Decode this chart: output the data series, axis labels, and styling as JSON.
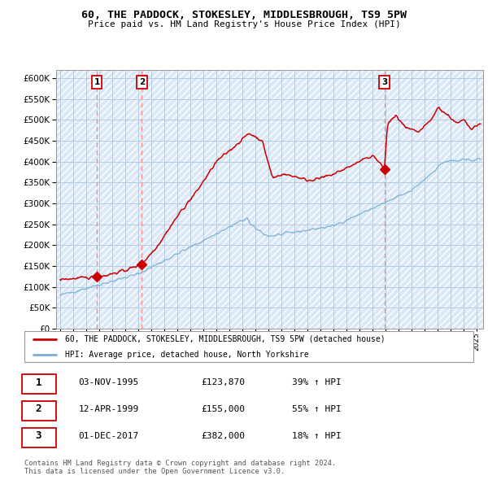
{
  "title": "60, THE PADDOCK, STOKESLEY, MIDDLESBROUGH, TS9 5PW",
  "subtitle": "Price paid vs. HM Land Registry's House Price Index (HPI)",
  "ytick_vals": [
    0,
    50000,
    100000,
    150000,
    200000,
    250000,
    300000,
    350000,
    400000,
    450000,
    500000,
    550000,
    600000
  ],
  "ylim": [
    0,
    620000
  ],
  "xlim_start": 1992.7,
  "xlim_end": 2025.5,
  "sale_points": [
    {
      "num": "1",
      "year": 1995.83,
      "price": 123870
    },
    {
      "num": "2",
      "year": 1999.28,
      "price": 155000
    },
    {
      "num": "3",
      "year": 2017.92,
      "price": 382000
    }
  ],
  "red_line_color": "#cc0000",
  "blue_line_color": "#7ab0d4",
  "marker_color": "#cc0000",
  "vline_color": "#ff8888",
  "bg_color": "#dce8f5",
  "grid_color": "#adc8e0",
  "legend1_label": "60, THE PADDOCK, STOKESLEY, MIDDLESBROUGH, TS9 5PW (detached house)",
  "legend2_label": "HPI: Average price, detached house, North Yorkshire",
  "footnote1": "Contains HM Land Registry data © Crown copyright and database right 2024.",
  "footnote2": "This data is licensed under the Open Government Licence v3.0.",
  "table_rows": [
    {
      "num": "1",
      "date": "03-NOV-1995",
      "price": "£123,870",
      "hpi": "39% ↑ HPI"
    },
    {
      "num": "2",
      "date": "12-APR-1999",
      "price": "£155,000",
      "hpi": "55% ↑ HPI"
    },
    {
      "num": "3",
      "date": "01-DEC-2017",
      "price": "£382,000",
      "hpi": "18% ↑ HPI"
    }
  ]
}
